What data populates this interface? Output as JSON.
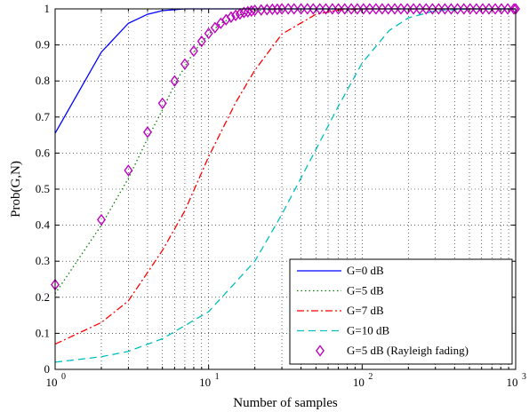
{
  "chart_data": {
    "type": "line",
    "title": "",
    "xlabel": "Number of samples",
    "ylabel": "Prob(G,N)",
    "xscale": "log",
    "xlim": [
      1,
      1000
    ],
    "ylim": [
      0,
      1
    ],
    "grid": true,
    "legend_position": "bottom-right",
    "x_ticks": [
      {
        "value": 1,
        "base": "10",
        "exp": "0"
      },
      {
        "value": 10,
        "base": "10",
        "exp": "1"
      },
      {
        "value": 100,
        "base": "10",
        "exp": "2"
      },
      {
        "value": 1000,
        "base": "10",
        "exp": "3"
      }
    ],
    "y_ticks": [
      "0",
      "0.1",
      "0.2",
      "0.3",
      "0.4",
      "0.5",
      "0.6",
      "0.7",
      "0.8",
      "0.9",
      "1"
    ],
    "series": [
      {
        "name": "G=0 dB",
        "color": "#0000ff",
        "style": "solid",
        "x": [
          1,
          2,
          3,
          4,
          5,
          7,
          10,
          20,
          50,
          100,
          1000
        ],
        "y": [
          0.655,
          0.88,
          0.96,
          0.985,
          0.995,
          1.0,
          1.0,
          1.0,
          1.0,
          1.0,
          1.0
        ]
      },
      {
        "name": "G=5 dB",
        "color": "#008000",
        "style": "dotted",
        "x": [
          1,
          2,
          3,
          4,
          5,
          6,
          7,
          8,
          10,
          12,
          15,
          20,
          30,
          50,
          100,
          1000
        ],
        "y": [
          0.21,
          0.4,
          0.53,
          0.64,
          0.72,
          0.79,
          0.84,
          0.88,
          0.93,
          0.96,
          0.98,
          0.995,
          1.0,
          1.0,
          1.0,
          1.0
        ]
      },
      {
        "name": "G=7 dB",
        "color": "#ff0000",
        "style": "dashdot",
        "x": [
          1,
          2,
          3,
          5,
          7,
          10,
          15,
          20,
          30,
          50,
          70,
          100,
          1000
        ],
        "y": [
          0.07,
          0.13,
          0.19,
          0.33,
          0.44,
          0.59,
          0.74,
          0.83,
          0.93,
          0.985,
          0.997,
          1.0,
          1.0
        ]
      },
      {
        "name": "G=10 dB",
        "color": "#00bfbf",
        "style": "dashed",
        "x": [
          1,
          2,
          3,
          5,
          10,
          20,
          30,
          50,
          70,
          100,
          150,
          200,
          300,
          500,
          1000
        ],
        "y": [
          0.02,
          0.035,
          0.05,
          0.085,
          0.16,
          0.3,
          0.43,
          0.61,
          0.73,
          0.85,
          0.94,
          0.975,
          0.995,
          1.0,
          1.0
        ]
      },
      {
        "name": "G=5 dB (Rayleigh fading)",
        "color": "#bf00bf",
        "style": "marker",
        "marker": "diamond",
        "x": [
          1,
          2,
          3,
          4,
          5,
          6,
          7,
          8,
          9,
          10,
          11,
          12,
          13,
          14,
          15,
          16,
          17,
          18,
          19,
          20,
          22,
          24,
          26,
          28,
          30,
          33,
          36,
          40,
          44,
          48,
          53,
          58,
          64,
          70,
          77,
          85,
          93,
          102,
          112,
          123,
          135,
          148,
          163,
          179,
          197,
          216,
          237,
          261,
          287,
          315,
          346,
          380,
          418,
          460,
          505,
          555,
          610,
          670,
          736,
          808,
          888,
          975,
          1000
        ],
        "y": [
          0.235,
          0.415,
          0.552,
          0.658,
          0.738,
          0.8,
          0.847,
          0.883,
          0.91,
          0.932,
          0.948,
          0.96,
          0.97,
          0.977,
          0.982,
          0.986,
          0.99,
          0.992,
          0.994,
          0.996,
          0.997,
          0.998,
          0.999,
          0.999,
          1.0,
          1.0,
          1.0,
          1.0,
          1.0,
          1.0,
          1.0,
          1.0,
          1.0,
          1.0,
          1.0,
          1.0,
          1.0,
          1.0,
          1.0,
          1.0,
          1.0,
          1.0,
          1.0,
          1.0,
          1.0,
          1.0,
          1.0,
          1.0,
          1.0,
          1.0,
          1.0,
          1.0,
          1.0,
          1.0,
          1.0,
          1.0,
          1.0,
          1.0,
          1.0,
          1.0,
          1.0,
          1.0,
          1.0
        ]
      }
    ]
  }
}
